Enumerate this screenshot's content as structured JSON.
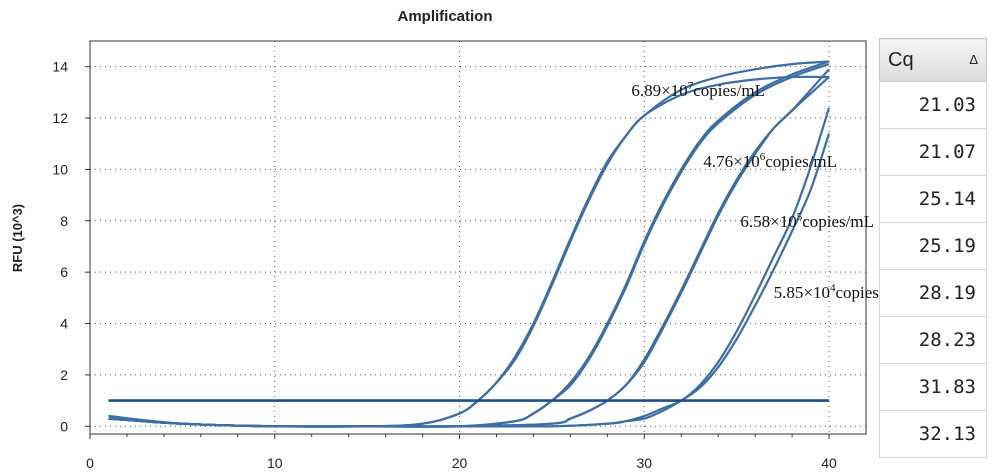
{
  "chart_data": {
    "type": "line",
    "title": "Amplification",
    "xlabel": "",
    "ylabel": "RFU (10^3)",
    "xlim": [
      0,
      42
    ],
    "ylim": [
      -0.3,
      15
    ],
    "xticks": [
      0,
      10,
      20,
      30,
      40
    ],
    "yticks": [
      0,
      2,
      4,
      6,
      8,
      10,
      12,
      14
    ],
    "grid": true,
    "threshold": 1.0,
    "curve_color": "#3a6ea5",
    "threshold_color": "#1f4f8a",
    "series": [
      {
        "cq": 21.03,
        "plateau": 13.6,
        "x": [
          1,
          5,
          10,
          15,
          18,
          20,
          21,
          22,
          23,
          24,
          25,
          26,
          27,
          28,
          29,
          30,
          32,
          34,
          36,
          38,
          40
        ],
        "y": [
          0.3,
          0.1,
          0,
          0,
          0.1,
          0.5,
          1.0,
          1.7,
          2.7,
          4.0,
          5.6,
          7.3,
          8.9,
          10.3,
          11.3,
          12.1,
          12.9,
          13.3,
          13.5,
          13.6,
          13.6
        ]
      },
      {
        "cq": 21.07,
        "plateau": 14.2,
        "x": [
          1,
          5,
          10,
          15,
          18,
          20,
          21,
          22,
          23,
          24,
          25,
          26,
          27,
          28,
          29,
          30,
          32,
          34,
          36,
          38,
          40
        ],
        "y": [
          0.4,
          0.1,
          0,
          0,
          0.1,
          0.5,
          1.0,
          1.7,
          2.6,
          3.9,
          5.5,
          7.2,
          8.8,
          10.2,
          11.3,
          12.1,
          13.1,
          13.6,
          13.9,
          14.1,
          14.2
        ]
      },
      {
        "cq": 25.14,
        "plateau": 14.2,
        "x": [
          1,
          5,
          10,
          15,
          20,
          23,
          24,
          25,
          26,
          27,
          28,
          29,
          30,
          31,
          32,
          33,
          34,
          36,
          38,
          40
        ],
        "y": [
          0.3,
          0.1,
          0,
          0,
          0,
          0.2,
          0.5,
          1.0,
          1.7,
          2.7,
          4.0,
          5.5,
          7.2,
          8.7,
          10.0,
          11.1,
          11.9,
          13.0,
          13.7,
          14.2
        ]
      },
      {
        "cq": 25.19,
        "plateau": 14.1,
        "x": [
          1,
          5,
          10,
          15,
          20,
          23,
          24,
          25,
          26,
          27,
          28,
          29,
          30,
          31,
          32,
          33,
          34,
          36,
          38,
          40
        ],
        "y": [
          0.3,
          0.1,
          0,
          0,
          0,
          0.2,
          0.5,
          1.0,
          1.6,
          2.6,
          3.9,
          5.4,
          7.1,
          8.6,
          9.9,
          11.0,
          11.8,
          12.9,
          13.6,
          14.1
        ]
      },
      {
        "cq": 28.19,
        "plateau": 13.6,
        "x": [
          1,
          5,
          10,
          15,
          20,
          25,
          26,
          27,
          28,
          29,
          30,
          31,
          32,
          33,
          34,
          35,
          36,
          37,
          38,
          40
        ],
        "y": [
          0.3,
          0.1,
          0,
          0,
          0,
          0.1,
          0.3,
          0.6,
          1.0,
          1.6,
          2.6,
          3.9,
          5.3,
          6.8,
          8.3,
          9.6,
          10.7,
          11.6,
          12.3,
          13.6
        ]
      },
      {
        "cq": 28.23,
        "plateau": 14.0,
        "x": [
          1,
          5,
          10,
          15,
          20,
          25,
          26,
          27,
          28,
          29,
          30,
          31,
          32,
          33,
          34,
          35,
          36,
          37,
          38,
          40
        ],
        "y": [
          0.3,
          0.1,
          0,
          0,
          0,
          0.1,
          0.3,
          0.6,
          1.0,
          1.6,
          2.5,
          3.8,
          5.2,
          6.7,
          8.2,
          9.5,
          10.6,
          11.6,
          12.3,
          13.9
        ]
      },
      {
        "cq": 31.83,
        "plateau": 12.5,
        "x": [
          1,
          5,
          10,
          15,
          20,
          25,
          28,
          29,
          30,
          31,
          32,
          33,
          34,
          35,
          36,
          37,
          38,
          39,
          40
        ],
        "y": [
          0.3,
          0.1,
          0,
          0,
          0,
          0,
          0.1,
          0.2,
          0.4,
          0.7,
          1.0,
          1.6,
          2.5,
          3.7,
          5.1,
          6.6,
          8.1,
          10.1,
          12.4
        ]
      },
      {
        "cq": 32.13,
        "plateau": 11.4,
        "x": [
          1,
          5,
          10,
          15,
          20,
          25,
          28,
          29,
          30,
          31,
          32,
          33,
          34,
          35,
          36,
          37,
          38,
          39,
          40
        ],
        "y": [
          0.3,
          0.1,
          0,
          0,
          0,
          0,
          0.1,
          0.2,
          0.3,
          0.6,
          1.0,
          1.5,
          2.3,
          3.4,
          4.7,
          6.1,
          7.6,
          9.2,
          11.4
        ]
      }
    ],
    "annotations": [
      {
        "x": 29.3,
        "y": 12.85,
        "mantissa": "6.89×10",
        "exp": "7",
        "unit": "copies/mL"
      },
      {
        "x": 33.2,
        "y": 10.1,
        "mantissa": "4.76×10",
        "exp": "6",
        "unit": "copies/mL"
      },
      {
        "x": 35.2,
        "y": 7.75,
        "mantissa": "6.58×10",
        "exp": "5",
        "unit": "copies/mL"
      },
      {
        "x": 37.0,
        "y": 5.0,
        "mantissa": "5.85×10",
        "exp": "4",
        "unit": "copies/mL"
      }
    ]
  },
  "table": {
    "header": "Cq",
    "sort_icon": "triangle-up-icon",
    "sort_glyph": "Δ",
    "values": [
      "21.03",
      "21.07",
      "25.14",
      "25.19",
      "28.19",
      "28.23",
      "31.83",
      "32.13"
    ]
  }
}
